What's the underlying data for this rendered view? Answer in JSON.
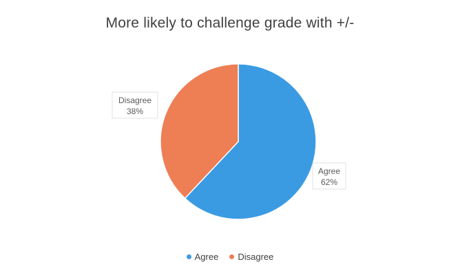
{
  "chart_data": {
    "type": "pie",
    "title": "More likely to challenge grade with +/-",
    "slices": [
      {
        "label": "Agree",
        "value": 62,
        "value_label": "62%",
        "color": "#3a9be3"
      },
      {
        "label": "Disagree",
        "value": 38,
        "value_label": "38%",
        "color": "#ee7e54"
      }
    ],
    "start_angle_deg": 0,
    "direction": "clockwise",
    "legend": {
      "position": "bottom",
      "entries": [
        "Agree",
        "Disagree"
      ]
    }
  }
}
